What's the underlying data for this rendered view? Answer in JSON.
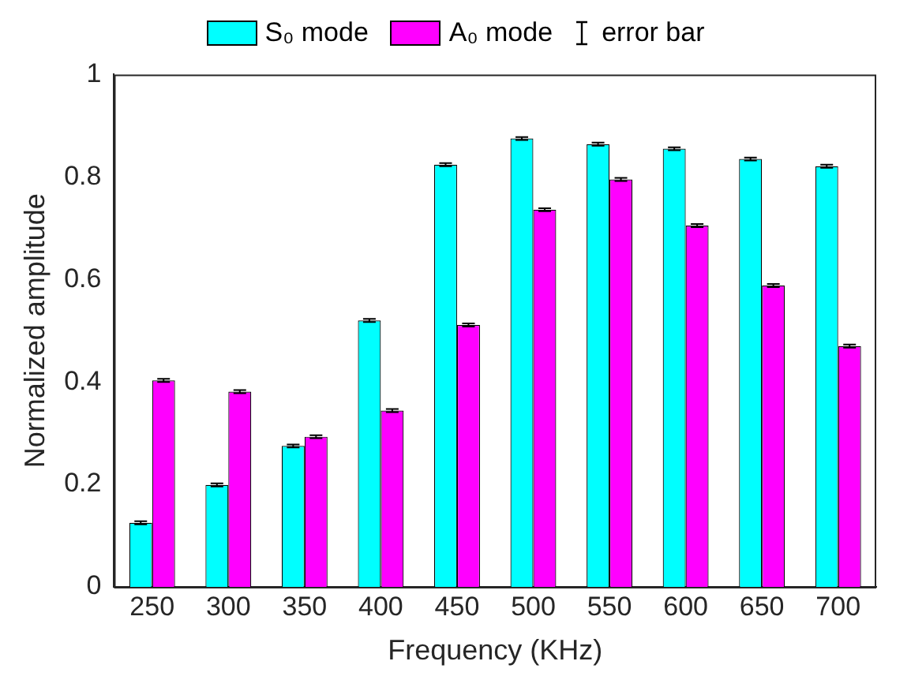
{
  "chart_data": {
    "type": "bar",
    "xlabel": "Frequency (KHz)",
    "ylabel": "Normalized amplitude",
    "categories": [
      "250",
      "300",
      "350",
      "400",
      "450",
      "500",
      "550",
      "600",
      "650",
      "700"
    ],
    "series": [
      {
        "name": "S₀ mode",
        "color": "#00ffff",
        "values": [
          0.125,
          0.199,
          0.275,
          0.52,
          0.824,
          0.875,
          0.864,
          0.855,
          0.835,
          0.821
        ],
        "errors": [
          0.003,
          0.003,
          0.003,
          0.003,
          0.003,
          0.003,
          0.003,
          0.003,
          0.003,
          0.003
        ]
      },
      {
        "name": "A₀ mode",
        "color": "#ff00ff",
        "values": [
          0.403,
          0.381,
          0.293,
          0.344,
          0.511,
          0.736,
          0.795,
          0.705,
          0.588,
          0.47
        ],
        "errors": [
          0.003,
          0.003,
          0.003,
          0.003,
          0.003,
          0.003,
          0.003,
          0.003,
          0.003,
          0.003
        ]
      }
    ],
    "annotations": [
      "error bar"
    ],
    "ylim": [
      0,
      1
    ],
    "yticks": [
      0,
      0.2,
      0.4,
      0.6,
      0.8,
      1
    ],
    "grid": false,
    "legend": "top"
  }
}
